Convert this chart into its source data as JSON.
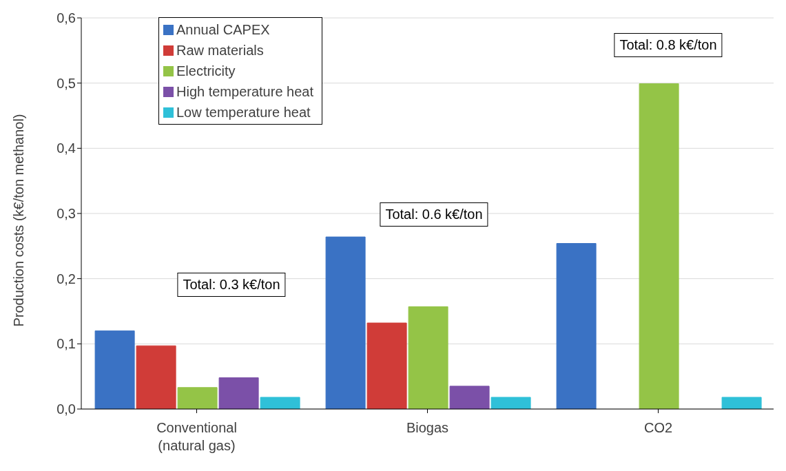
{
  "chart_data": {
    "type": "bar",
    "ylabel": "Production costs (k€/ton methanol)",
    "categories": [
      "Conventional (natural gas)",
      "Biogas",
      "CO2"
    ],
    "series": [
      {
        "name": "Annual CAPEX",
        "color": "#3a72c4",
        "values": [
          0.12,
          0.264,
          0.254
        ]
      },
      {
        "name": "Raw materials",
        "color": "#d03c38",
        "values": [
          0.097,
          0.132,
          null
        ]
      },
      {
        "name": "Electricity",
        "color": "#94c447",
        "values": [
          0.033,
          0.157,
          0.499
        ]
      },
      {
        "name": "High temperature heat",
        "color": "#7b50a8",
        "values": [
          0.048,
          0.035,
          null
        ]
      },
      {
        "name": "Low temperature heat",
        "color": "#2fc0d8",
        "values": [
          0.018,
          0.018,
          0.018
        ]
      }
    ],
    "ylim": [
      0,
      0.6
    ],
    "yticks": [
      {
        "value": 0,
        "label": "0,0"
      },
      {
        "value": 0.1,
        "label": "0,1"
      },
      {
        "value": 0.2,
        "label": "0,2"
      },
      {
        "value": 0.3,
        "label": "0,3"
      },
      {
        "value": 0.4,
        "label": "0,4"
      },
      {
        "value": 0.5,
        "label": "0,5"
      },
      {
        "value": 0.6,
        "label": "0,6"
      }
    ],
    "grid": "y",
    "legend": "top left",
    "annotations": [
      "Total: 0.3 k€/ton",
      "Total: 0.6 k€/ton",
      "Total: 0.8 k€/ton"
    ]
  }
}
